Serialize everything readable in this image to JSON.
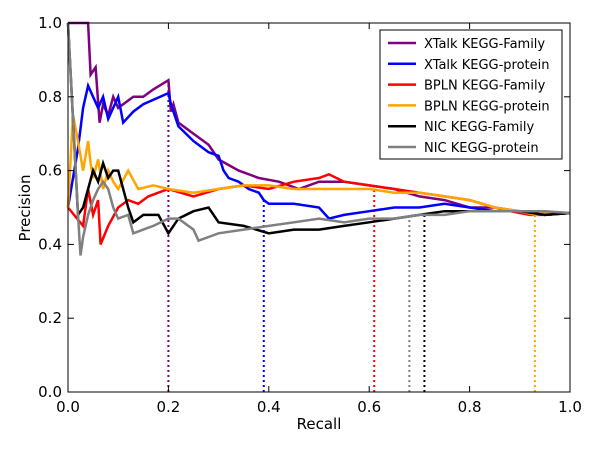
{
  "chart_data": {
    "type": "line",
    "title": "",
    "xlabel": "Recall",
    "ylabel": "Precision",
    "xlim": [
      0.0,
      1.0
    ],
    "ylim": [
      0.0,
      1.0
    ],
    "xticks": [
      "0.0",
      "0.2",
      "0.4",
      "0.6",
      "0.8",
      "1.0"
    ],
    "yticks": [
      "0.0",
      "0.2",
      "0.4",
      "0.6",
      "0.8",
      "1.0"
    ],
    "grid": false,
    "legend_position": "top-right",
    "series": [
      {
        "name": "XTalk KEGG-Family",
        "color": "#800080",
        "cutoff_recall": 0.2,
        "points": [
          [
            0.0,
            1.0
          ],
          [
            0.04,
            1.0
          ],
          [
            0.045,
            0.86
          ],
          [
            0.055,
            0.88
          ],
          [
            0.063,
            0.73
          ],
          [
            0.07,
            0.78
          ],
          [
            0.08,
            0.75
          ],
          [
            0.09,
            0.8
          ],
          [
            0.1,
            0.77
          ],
          [
            0.13,
            0.8
          ],
          [
            0.15,
            0.8
          ],
          [
            0.17,
            0.82
          ],
          [
            0.2,
            0.845
          ],
          [
            0.205,
            0.76
          ],
          [
            0.21,
            0.78
          ],
          [
            0.22,
            0.73
          ],
          [
            0.25,
            0.7
          ],
          [
            0.28,
            0.67
          ],
          [
            0.3,
            0.63
          ],
          [
            0.34,
            0.6
          ],
          [
            0.38,
            0.58
          ],
          [
            0.42,
            0.57
          ],
          [
            0.46,
            0.55
          ],
          [
            0.5,
            0.57
          ],
          [
            0.55,
            0.57
          ],
          [
            0.6,
            0.56
          ],
          [
            0.65,
            0.55
          ],
          [
            0.7,
            0.53
          ],
          [
            0.75,
            0.52
          ],
          [
            0.8,
            0.5
          ],
          [
            0.85,
            0.5
          ],
          [
            0.9,
            0.49
          ],
          [
            0.95,
            0.48
          ],
          [
            1.0,
            0.485
          ]
        ]
      },
      {
        "name": "XTalk KEGG-protein",
        "color": "#0000ff",
        "cutoff_recall": 0.39,
        "points": [
          [
            0.0,
            0.5
          ],
          [
            0.02,
            0.66
          ],
          [
            0.03,
            0.77
          ],
          [
            0.04,
            0.83
          ],
          [
            0.05,
            0.8
          ],
          [
            0.06,
            0.77
          ],
          [
            0.07,
            0.8
          ],
          [
            0.08,
            0.74
          ],
          [
            0.1,
            0.8
          ],
          [
            0.11,
            0.73
          ],
          [
            0.13,
            0.76
          ],
          [
            0.15,
            0.78
          ],
          [
            0.2,
            0.81
          ],
          [
            0.205,
            0.78
          ],
          [
            0.22,
            0.72
          ],
          [
            0.25,
            0.68
          ],
          [
            0.28,
            0.65
          ],
          [
            0.3,
            0.64
          ],
          [
            0.31,
            0.6
          ],
          [
            0.32,
            0.58
          ],
          [
            0.34,
            0.57
          ],
          [
            0.36,
            0.55
          ],
          [
            0.38,
            0.54
          ],
          [
            0.39,
            0.52
          ],
          [
            0.4,
            0.51
          ],
          [
            0.45,
            0.51
          ],
          [
            0.5,
            0.5
          ],
          [
            0.52,
            0.47
          ],
          [
            0.55,
            0.48
          ],
          [
            0.6,
            0.49
          ],
          [
            0.65,
            0.5
          ],
          [
            0.7,
            0.5
          ],
          [
            0.75,
            0.51
          ],
          [
            0.8,
            0.5
          ],
          [
            0.85,
            0.49
          ],
          [
            0.9,
            0.49
          ],
          [
            0.95,
            0.48
          ],
          [
            1.0,
            0.485
          ]
        ]
      },
      {
        "name": "BPLN KEGG-Family",
        "color": "#ff0000",
        "cutoff_recall": 0.61,
        "points": [
          [
            0.0,
            0.5
          ],
          [
            0.03,
            0.45
          ],
          [
            0.04,
            0.55
          ],
          [
            0.05,
            0.48
          ],
          [
            0.06,
            0.52
          ],
          [
            0.065,
            0.4
          ],
          [
            0.08,
            0.45
          ],
          [
            0.1,
            0.5
          ],
          [
            0.12,
            0.52
          ],
          [
            0.14,
            0.51
          ],
          [
            0.16,
            0.53
          ],
          [
            0.2,
            0.55
          ],
          [
            0.25,
            0.53
          ],
          [
            0.3,
            0.55
          ],
          [
            0.35,
            0.56
          ],
          [
            0.4,
            0.55
          ],
          [
            0.45,
            0.57
          ],
          [
            0.5,
            0.58
          ],
          [
            0.52,
            0.59
          ],
          [
            0.55,
            0.57
          ],
          [
            0.6,
            0.56
          ],
          [
            0.65,
            0.55
          ],
          [
            0.7,
            0.54
          ],
          [
            0.75,
            0.53
          ],
          [
            0.8,
            0.52
          ],
          [
            0.85,
            0.5
          ],
          [
            0.88,
            0.49
          ],
          [
            0.92,
            0.48
          ],
          [
            0.95,
            0.48
          ],
          [
            1.0,
            0.485
          ]
        ]
      },
      {
        "name": "BPLN KEGG-protein",
        "color": "#ffa500",
        "cutoff_recall": 0.93,
        "points": [
          [
            0.0,
            0.5
          ],
          [
            0.01,
            0.75
          ],
          [
            0.02,
            0.68
          ],
          [
            0.03,
            0.6
          ],
          [
            0.04,
            0.68
          ],
          [
            0.045,
            0.62
          ],
          [
            0.05,
            0.58
          ],
          [
            0.06,
            0.63
          ],
          [
            0.07,
            0.55
          ],
          [
            0.08,
            0.6
          ],
          [
            0.09,
            0.57
          ],
          [
            0.1,
            0.55
          ],
          [
            0.12,
            0.6
          ],
          [
            0.14,
            0.55
          ],
          [
            0.17,
            0.56
          ],
          [
            0.2,
            0.55
          ],
          [
            0.25,
            0.54
          ],
          [
            0.3,
            0.55
          ],
          [
            0.35,
            0.56
          ],
          [
            0.4,
            0.56
          ],
          [
            0.45,
            0.55
          ],
          [
            0.5,
            0.55
          ],
          [
            0.55,
            0.55
          ],
          [
            0.6,
            0.55
          ],
          [
            0.65,
            0.54
          ],
          [
            0.7,
            0.54
          ],
          [
            0.75,
            0.53
          ],
          [
            0.8,
            0.52
          ],
          [
            0.85,
            0.5
          ],
          [
            0.9,
            0.49
          ],
          [
            0.93,
            0.48
          ],
          [
            0.95,
            0.485
          ],
          [
            1.0,
            0.485
          ]
        ]
      },
      {
        "name": "NIC KEGG-Family",
        "color": "#000000",
        "cutoff_recall": 0.71,
        "points": [
          [
            0.0,
            1.0
          ],
          [
            0.02,
            0.48
          ],
          [
            0.03,
            0.5
          ],
          [
            0.04,
            0.55
          ],
          [
            0.05,
            0.6
          ],
          [
            0.06,
            0.57
          ],
          [
            0.07,
            0.62
          ],
          [
            0.08,
            0.58
          ],
          [
            0.09,
            0.6
          ],
          [
            0.1,
            0.6
          ],
          [
            0.11,
            0.55
          ],
          [
            0.12,
            0.5
          ],
          [
            0.13,
            0.46
          ],
          [
            0.14,
            0.47
          ],
          [
            0.15,
            0.48
          ],
          [
            0.18,
            0.48
          ],
          [
            0.2,
            0.43
          ],
          [
            0.22,
            0.47
          ],
          [
            0.25,
            0.49
          ],
          [
            0.28,
            0.5
          ],
          [
            0.3,
            0.46
          ],
          [
            0.35,
            0.45
          ],
          [
            0.4,
            0.43
          ],
          [
            0.45,
            0.44
          ],
          [
            0.5,
            0.44
          ],
          [
            0.55,
            0.45
          ],
          [
            0.6,
            0.46
          ],
          [
            0.65,
            0.47
          ],
          [
            0.7,
            0.48
          ],
          [
            0.75,
            0.49
          ],
          [
            0.8,
            0.49
          ],
          [
            0.85,
            0.49
          ],
          [
            0.9,
            0.49
          ],
          [
            0.95,
            0.48
          ],
          [
            1.0,
            0.485
          ]
        ]
      },
      {
        "name": "NIC KEGG-protein",
        "color": "#808080",
        "cutoff_recall": 0.68,
        "points": [
          [
            0.0,
            1.0
          ],
          [
            0.02,
            0.48
          ],
          [
            0.025,
            0.37
          ],
          [
            0.03,
            0.42
          ],
          [
            0.04,
            0.48
          ],
          [
            0.05,
            0.52
          ],
          [
            0.06,
            0.55
          ],
          [
            0.07,
            0.57
          ],
          [
            0.08,
            0.55
          ],
          [
            0.09,
            0.5
          ],
          [
            0.1,
            0.47
          ],
          [
            0.12,
            0.48
          ],
          [
            0.13,
            0.43
          ],
          [
            0.15,
            0.44
          ],
          [
            0.17,
            0.45
          ],
          [
            0.2,
            0.47
          ],
          [
            0.22,
            0.47
          ],
          [
            0.25,
            0.44
          ],
          [
            0.26,
            0.41
          ],
          [
            0.28,
            0.42
          ],
          [
            0.3,
            0.43
          ],
          [
            0.35,
            0.44
          ],
          [
            0.4,
            0.45
          ],
          [
            0.45,
            0.46
          ],
          [
            0.5,
            0.47
          ],
          [
            0.55,
            0.46
          ],
          [
            0.6,
            0.47
          ],
          [
            0.65,
            0.47
          ],
          [
            0.7,
            0.48
          ],
          [
            0.75,
            0.48
          ],
          [
            0.8,
            0.49
          ],
          [
            0.85,
            0.49
          ],
          [
            0.9,
            0.49
          ],
          [
            0.95,
            0.49
          ],
          [
            1.0,
            0.485
          ]
        ]
      }
    ]
  }
}
